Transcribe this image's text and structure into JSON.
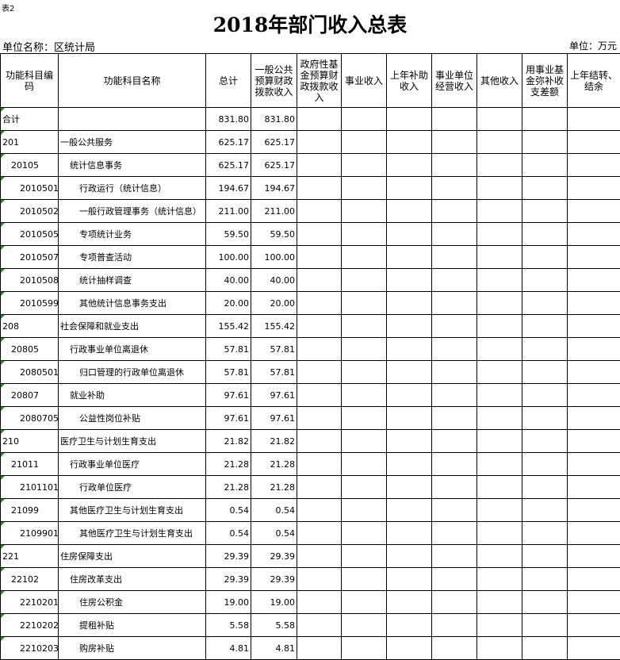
{
  "header": {
    "sheet_label": "表2",
    "title": "2018年部门收入总表",
    "unit_name": "单位名称：区统计局",
    "unit": "单位：万元"
  },
  "table": {
    "columns": [
      "功能科目编码",
      "功能科目名称",
      "总计",
      "一般公共预算财政拨款收入",
      "政府性基金预算财政拨款收入",
      "事业收入",
      "上年补助收入",
      "事业单位经营收入",
      "其他收入",
      "用事业基金弥补收支差额",
      "上年结转、结余"
    ],
    "rows": [
      [
        "合计",
        "",
        "831.80",
        "831.80"
      ],
      [
        "201",
        "一般公共服务",
        "625.17",
        "625.17"
      ],
      [
        "20105",
        "统计信息事务",
        "625.17",
        "625.17"
      ],
      [
        "2010501",
        "行政运行（统计信息）",
        "194.67",
        "194.67"
      ],
      [
        "2010502",
        "一般行政管理事务（统计信息）",
        "211.00",
        "211.00"
      ],
      [
        "2010505",
        "专项统计业务",
        "59.50",
        "59.50"
      ],
      [
        "2010507",
        "专项普查活动",
        "100.00",
        "100.00"
      ],
      [
        "2010508",
        "统计抽样调查",
        "40.00",
        "40.00"
      ],
      [
        "2010599",
        "其他统计信息事务支出",
        "20.00",
        "20.00"
      ],
      [
        "208",
        "社会保障和就业支出",
        "155.42",
        "155.42"
      ],
      [
        "20805",
        "行政事业单位离退休",
        "57.81",
        "57.81"
      ],
      [
        "2080501",
        "归口管理的行政单位离退休",
        "57.81",
        "57.81"
      ],
      [
        "20807",
        "就业补助",
        "97.61",
        "97.61"
      ],
      [
        "2080705",
        "公益性岗位补贴",
        "97.61",
        "97.61"
      ],
      [
        "210",
        "医疗卫生与计划生育支出",
        "21.82",
        "21.82"
      ],
      [
        "21011",
        "行政事业单位医疗",
        "21.28",
        "21.28"
      ],
      [
        "2101101",
        "行政单位医疗",
        "21.28",
        "21.28"
      ],
      [
        "21099",
        "其他医疗卫生与计划生育支出",
        "0.54",
        "0.54"
      ],
      [
        "2109901",
        "其他医疗卫生与计划生育支出",
        "0.54",
        "0.54"
      ],
      [
        "221",
        "住房保障支出",
        "29.39",
        "29.39"
      ],
      [
        "22102",
        "住房改革支出",
        "29.39",
        "29.39"
      ],
      [
        "2210201",
        "住房公积金",
        "19.00",
        "19.00"
      ],
      [
        "2210202",
        "提租补贴",
        "5.58",
        "5.58"
      ],
      [
        "2210203",
        "购房补贴",
        "4.81",
        "4.81"
      ]
    ]
  }
}
